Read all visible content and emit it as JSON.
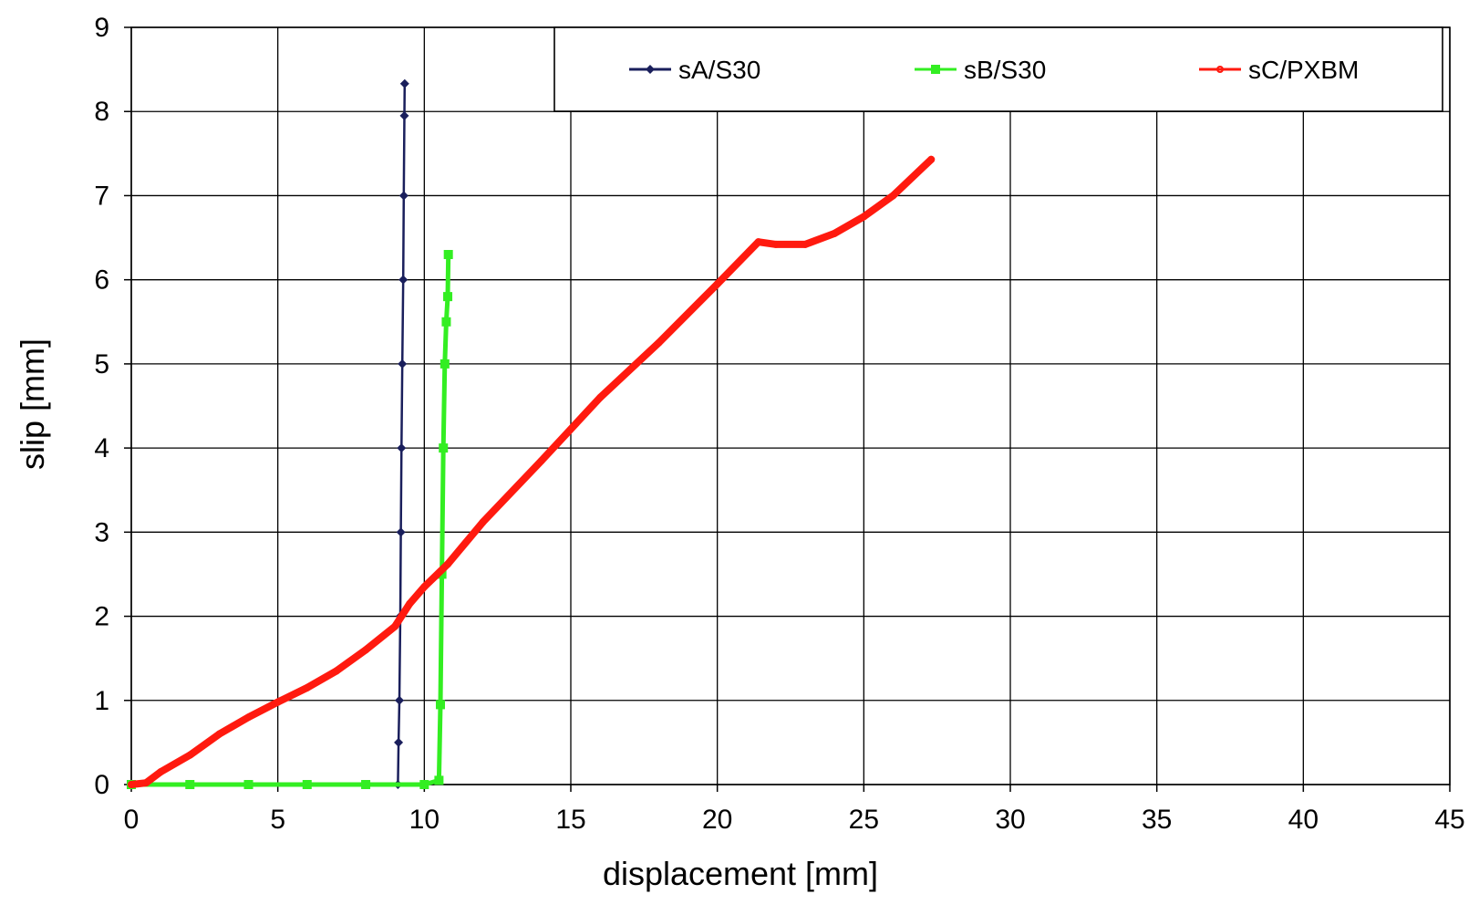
{
  "chart_data": {
    "type": "line",
    "title": "",
    "xlabel": "displacement [mm]",
    "ylabel": "slip [mm]",
    "xlim": [
      0,
      45
    ],
    "ylim": [
      0,
      9
    ],
    "xticks": [
      0,
      5,
      10,
      15,
      20,
      25,
      30,
      35,
      40,
      45
    ],
    "yticks": [
      0,
      1,
      2,
      3,
      4,
      5,
      6,
      7,
      8,
      9
    ],
    "grid": true,
    "legend_position": "top-right",
    "series": [
      {
        "name": "sA/S30",
        "color": "#1a1f5c",
        "marker": "diamond",
        "x": [
          9.1,
          9.12,
          9.15,
          9.18,
          9.2,
          9.22,
          9.25,
          9.28,
          9.3,
          9.32,
          9.33
        ],
        "y": [
          0.0,
          0.5,
          1.0,
          2.0,
          3.0,
          4.0,
          5.0,
          6.0,
          7.0,
          7.95,
          8.33
        ]
      },
      {
        "name": "sB/S30",
        "color": "#33ee22",
        "marker": "square",
        "x": [
          0.0,
          2.0,
          4.0,
          6.0,
          8.0,
          10.0,
          10.5,
          10.55,
          10.6,
          10.65,
          10.7,
          10.75,
          10.8,
          10.82
        ],
        "y": [
          0.0,
          0.0,
          0.0,
          0.0,
          0.0,
          0.0,
          0.05,
          0.95,
          2.5,
          4.0,
          5.0,
          5.5,
          5.8,
          6.3
        ]
      },
      {
        "name": "sC/PXBM",
        "color": "#ff1a0f",
        "marker": "circle",
        "x": [
          0.0,
          0.5,
          1.0,
          2.0,
          3.0,
          4.0,
          5.0,
          6.0,
          7.0,
          8.0,
          9.0,
          9.5,
          10.0,
          10.8,
          12.0,
          14.0,
          16.0,
          18.0,
          20.0,
          21.4,
          22.0,
          23.0,
          24.0,
          25.0,
          26.0,
          27.3
        ],
        "y": [
          0.0,
          0.02,
          0.15,
          0.35,
          0.6,
          0.8,
          0.98,
          1.15,
          1.35,
          1.6,
          1.88,
          2.15,
          2.35,
          2.62,
          3.12,
          3.85,
          4.6,
          5.25,
          5.95,
          6.45,
          6.42,
          6.42,
          6.55,
          6.75,
          7.0,
          7.43
        ]
      }
    ]
  }
}
